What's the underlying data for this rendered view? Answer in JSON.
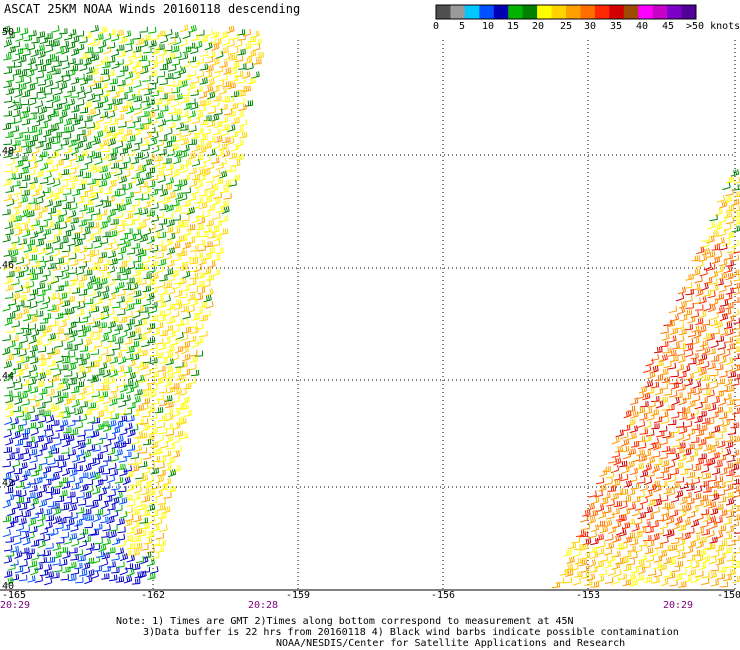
{
  "header": {
    "title": "ASCAT 25KM NOAA Winds 20160118 descending",
    "legend_labels": [
      "0",
      "5",
      "10",
      "15",
      "20",
      "25",
      "30",
      "35",
      "40",
      "45",
      ">50 knots"
    ],
    "legend_colors": [
      "#505050",
      "#9a9a9a",
      "#00c8ff",
      "#0050ff",
      "#0000b4",
      "#00b400",
      "#008200",
      "#ffff00",
      "#ffd200",
      "#ffa000",
      "#ff6e00",
      "#ff2800",
      "#d20000",
      "#9c4b00",
      "#ff00ff",
      "#c800c8",
      "#7d00c8",
      "#500096"
    ]
  },
  "map": {
    "lat_labels": [
      "50",
      "48",
      "46",
      "44",
      "42",
      "40"
    ],
    "lon_labels": [
      "-165",
      "-162",
      "-159",
      "-156",
      "-153",
      "-150"
    ],
    "time_labels": [
      "20:29",
      "20:28",
      "20:29"
    ]
  },
  "footer": {
    "note_line1": "Note: 1) Times are GMT 2)Times along bottom correspond to measurement at 45N",
    "note_line2": "3)Data buffer is 22 hrs from 20160118 4) Black wind barbs indicate possible contamination",
    "note_line3": "NOAA/NESDIS/Center for Satellite Applications and Research"
  }
}
